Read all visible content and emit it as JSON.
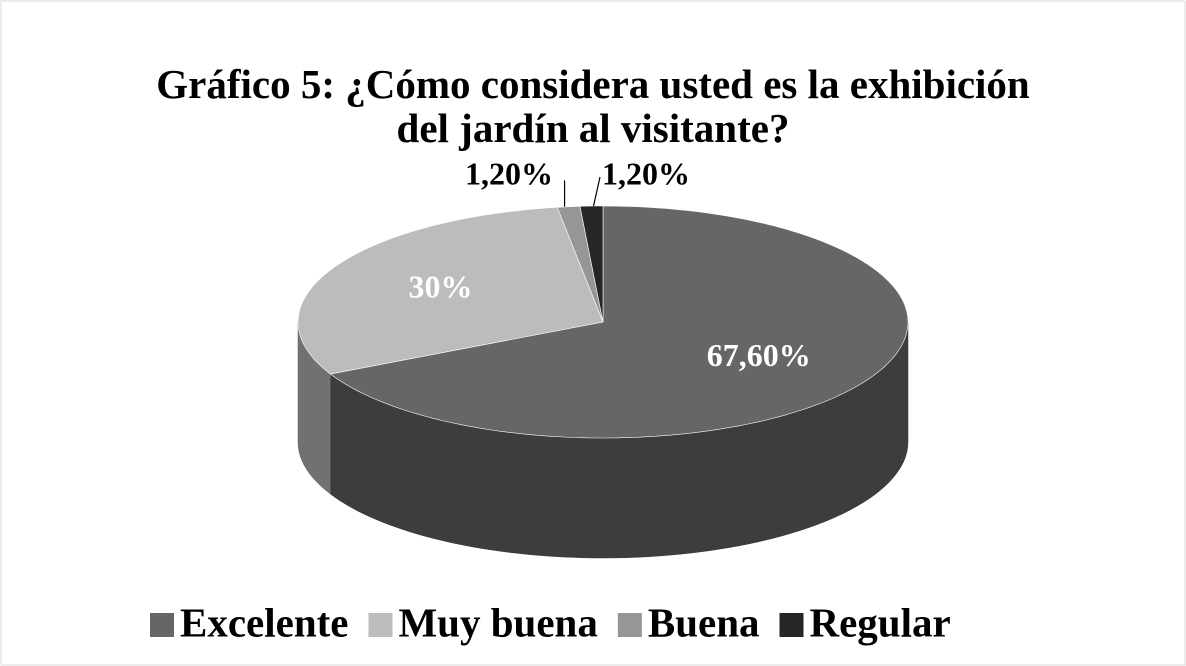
{
  "chart_data": {
    "type": "pie",
    "title": "Gráfico 5: ¿Cómo considera usted es la exhibición del jardín al visitante?",
    "categories": [
      "Excelente",
      "Muy buena",
      "Buena",
      "Regular"
    ],
    "values": [
      67.6,
      30,
      1.2,
      1.2
    ],
    "value_labels": [
      "67,60%",
      "30%",
      "1,20%",
      "1,20%"
    ],
    "colors": [
      "#666666",
      "#bcbcbc",
      "#969696",
      "#262626"
    ],
    "legend": "bottom"
  }
}
